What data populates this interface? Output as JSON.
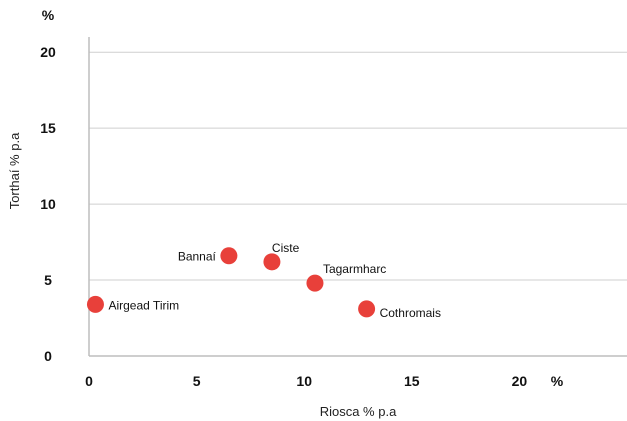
{
  "chart_data": {
    "type": "scatter",
    "xlabel": "Riosca % p.a",
    "ylabel": "Torthaí % p.a",
    "x_unit": "%",
    "y_unit": "%",
    "xlim": [
      0,
      25
    ],
    "ylim": [
      0,
      21
    ],
    "x_ticks": [
      0,
      5,
      10,
      15,
      20
    ],
    "y_ticks": [
      0,
      5,
      10,
      15,
      20
    ],
    "grid": "horizontal",
    "point_color": "#e8403a",
    "points": [
      {
        "label": "Airgead Tirim",
        "x": 0.3,
        "y": 3.4
      },
      {
        "label": "Bannaí",
        "x": 6.5,
        "y": 6.6
      },
      {
        "label": "Ciste",
        "x": 8.5,
        "y": 6.2
      },
      {
        "label": "Tagarmharc",
        "x": 10.5,
        "y": 4.8
      },
      {
        "label": "Cothromais",
        "x": 12.9,
        "y": 3.1
      }
    ]
  }
}
